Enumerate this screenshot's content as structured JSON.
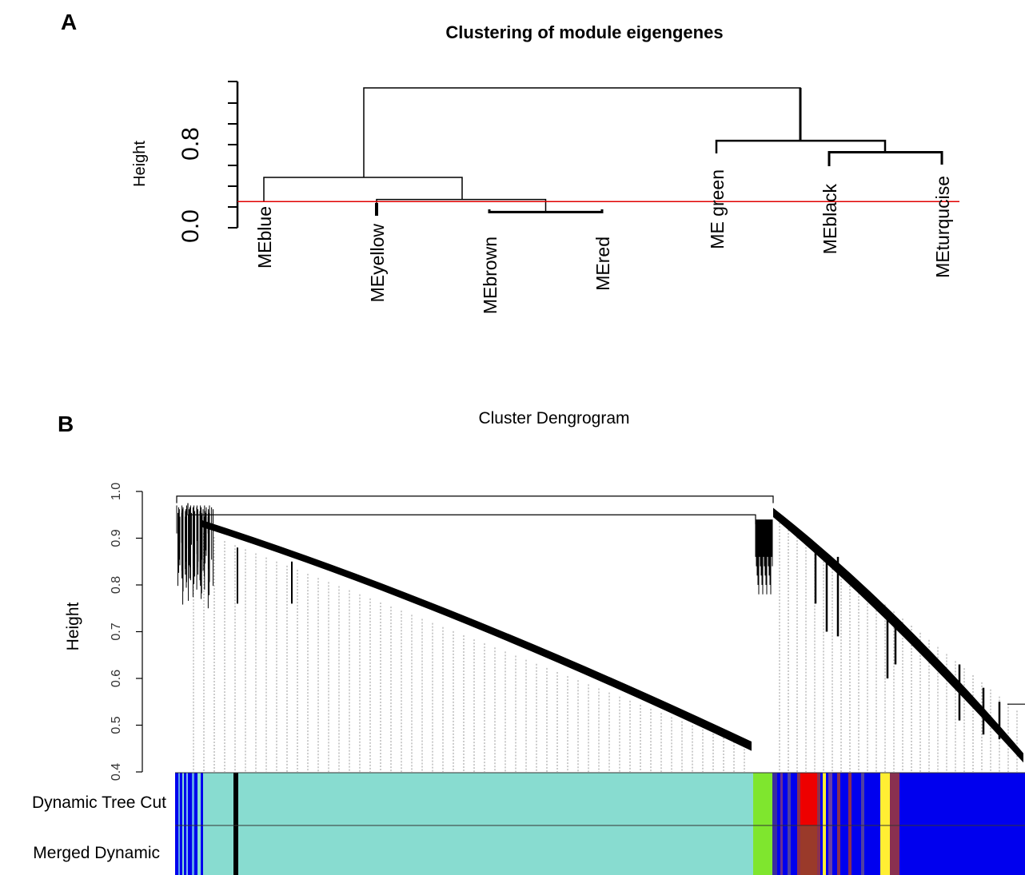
{
  "panel_a": {
    "label": "A",
    "title": "Clustering of module eigengenes",
    "ylabel": "Height",
    "yticks": [
      "0.0",
      "0.8"
    ],
    "leaves": [
      "MEblue",
      "MEyellow",
      "MEbrown",
      "MEred",
      "ME green",
      "MEblack",
      "MEturqucise"
    ]
  },
  "panel_b": {
    "label": "B",
    "title": "Cluster Dengrogram",
    "ylabel": "Height",
    "yticks": [
      "0.4",
      "0.5",
      "0.6",
      "0.7",
      "0.8",
      "0.9",
      "1.0"
    ],
    "row_labels": [
      "Dynamic Tree Cut",
      "Merged Dynamic"
    ]
  },
  "colors": {
    "cut_line": "#e00000",
    "turquoise": "#88dcd0",
    "blue": "#0000ee",
    "green": "#7fe62e",
    "red": "#ee0000",
    "brown": "#9a3a2a",
    "yellow": "#ffee33",
    "black": "#000000"
  },
  "chart_data": [
    {
      "type": "dendrogram",
      "title": "Clustering of module eigengenes",
      "ylabel": "Height",
      "ylim": [
        0.0,
        1.25
      ],
      "leaves": [
        "MEblue",
        "MEyellow",
        "MEbrown",
        "MEred",
        "ME green",
        "MEblack",
        "MEturqucise"
      ],
      "merges": [
        {
          "a": "MEbrown",
          "b": "MEred",
          "height": 0.15
        },
        {
          "a": "MEyellow",
          "b": "MEbrown+MEred",
          "height": 0.27
        },
        {
          "a": "MEblue",
          "b": "MEyellow+MEbrown+MEred",
          "height": 0.48
        },
        {
          "a": "MEblack",
          "b": "MEturqucise",
          "height": 0.72
        },
        {
          "a": "ME green",
          "b": "MEblack+MEturqucise",
          "height": 0.83
        },
        {
          "a": "left_cluster",
          "b": "right_cluster",
          "height": 1.38
        }
      ],
      "cut_height": 0.25
    },
    {
      "type": "dendrogram",
      "title": "Cluster Dengrogram",
      "ylabel": "Height",
      "ylim": [
        0.4,
        1.0
      ],
      "color_rows": [
        "Dynamic Tree Cut",
        "Merged Dynamic"
      ]
    }
  ]
}
